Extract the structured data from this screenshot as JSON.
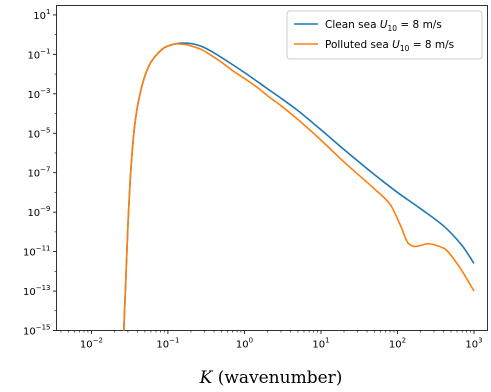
{
  "chart_data": {
    "type": "line",
    "x_scale": "log",
    "y_scale": "log",
    "xlim": [
      0.0035,
      1500
    ],
    "ylim": [
      1e-15,
      30
    ],
    "xlabel_var": "K",
    "xlabel_rest": " (wavenumber)",
    "grid": false,
    "legend_position": "top-right",
    "x_ticks": [
      {
        "base": "10",
        "exp": "−2",
        "value": 0.01
      },
      {
        "base": "10",
        "exp": "−1",
        "value": 0.1
      },
      {
        "base": "10",
        "exp": "0",
        "value": 1
      },
      {
        "base": "10",
        "exp": "1",
        "value": 10
      },
      {
        "base": "10",
        "exp": "2",
        "value": 100
      },
      {
        "base": "10",
        "exp": "3",
        "value": 1000
      }
    ],
    "y_ticks": [
      {
        "base": "10",
        "exp": "1",
        "value": 10
      },
      {
        "base": "10",
        "exp": "−1",
        "value": 0.1
      },
      {
        "base": "10",
        "exp": "−3",
        "value": 0.001
      },
      {
        "base": "10",
        "exp": "−5",
        "value": 1e-05
      },
      {
        "base": "10",
        "exp": "−7",
        "value": 1e-07
      },
      {
        "base": "10",
        "exp": "−9",
        "value": 1e-09
      },
      {
        "base": "10",
        "exp": "−11",
        "value": 1e-11
      },
      {
        "base": "10",
        "exp": "−13",
        "value": 1e-13
      },
      {
        "base": "10",
        "exp": "−15",
        "value": 1e-15
      }
    ],
    "series": [
      {
        "name_prefix": "Clean sea ",
        "name_var": "U",
        "name_sub": "10",
        "name_suffix": " = 8 m/s",
        "color": "#1f77b4",
        "x": [
          0.0265,
          0.028,
          0.03,
          0.033,
          0.037,
          0.042,
          0.05,
          0.06,
          0.075,
          0.09,
          0.11,
          0.13,
          0.15,
          0.18,
          0.22,
          0.27,
          0.35,
          0.5,
          0.7,
          1,
          1.5,
          2,
          3,
          5,
          10,
          20,
          50,
          100,
          200,
          400,
          700,
          1000
        ],
        "y": [
          1e-15,
          2e-13,
          2e-10,
          2e-07,
          3e-05,
          0.0006,
          0.008,
          0.04,
          0.12,
          0.22,
          0.3,
          0.35,
          0.37,
          0.37,
          0.33,
          0.26,
          0.16,
          0.07,
          0.03,
          0.012,
          0.004,
          0.0018,
          0.0006,
          0.00014,
          1.5e-05,
          1.5e-06,
          8e-08,
          1e-08,
          1.5e-09,
          2e-10,
          2e-11,
          2.5e-12
        ]
      },
      {
        "name_prefix": "Polluted sea ",
        "name_var": "U",
        "name_sub": "10",
        "name_suffix": " = 8 m/s",
        "color": "#ff7f0e",
        "x": [
          0.0265,
          0.028,
          0.03,
          0.033,
          0.037,
          0.042,
          0.05,
          0.06,
          0.075,
          0.09,
          0.11,
          0.13,
          0.15,
          0.18,
          0.22,
          0.27,
          0.35,
          0.5,
          0.7,
          1,
          1.5,
          2,
          3,
          5,
          10,
          20,
          50,
          80,
          110,
          140,
          170,
          250,
          400,
          600,
          1000
        ],
        "y": [
          1e-15,
          2e-13,
          2e-10,
          2e-07,
          3e-05,
          0.0006,
          0.008,
          0.04,
          0.12,
          0.22,
          0.3,
          0.34,
          0.33,
          0.3,
          0.24,
          0.18,
          0.1,
          0.04,
          0.015,
          0.006,
          0.002,
          0.0008,
          0.00025,
          5e-05,
          4.5e-06,
          3.5e-07,
          1.5e-08,
          2.5e-09,
          2e-10,
          2.5e-11,
          1.8e-11,
          2.5e-11,
          1.5e-11,
          2.5e-12,
          1e-13
        ]
      }
    ]
  }
}
